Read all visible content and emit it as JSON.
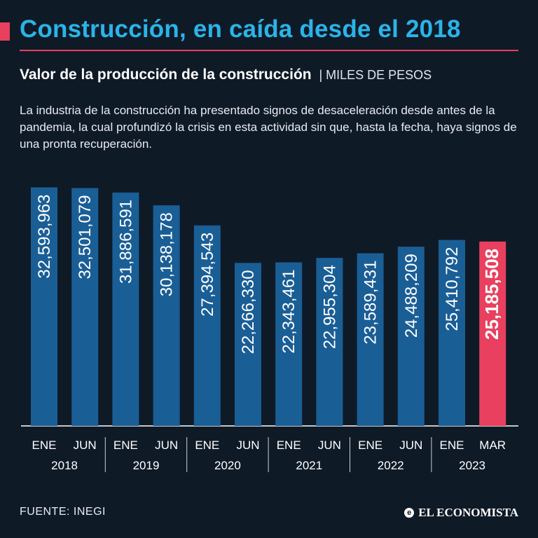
{
  "header": {
    "title": "Construcción, en caída desde el 2018",
    "subtitle": "Valor de la producción de la construcción",
    "unit": "MILES DE PESOS",
    "description": "La industria de la construcción ha presentado signos de desaceleración desde antes de la pandemia, la cual profundizó la crisis en esta actividad sin que, hasta la fecha, haya signos de una pronta recuperación."
  },
  "footer": {
    "source": "FUENTE: INEGI",
    "logo_text": "EL ECONOMISTA"
  },
  "colors": {
    "background": "#0f1a27",
    "bar": "#1a5e96",
    "highlight": "#e8405e",
    "title": "#2ab4e8"
  },
  "chart_data": {
    "type": "bar",
    "title": "Valor de la producción de la construcción",
    "ylabel": "Miles de pesos",
    "xlabel": "",
    "ylim": [
      0,
      33500000
    ],
    "grid": false,
    "categories": [
      "ENE",
      "JUN",
      "ENE",
      "JUN",
      "ENE",
      "JUN",
      "ENE",
      "JUN",
      "ENE",
      "JUN",
      "ENE",
      "MAR"
    ],
    "years": [
      "2018",
      "2019",
      "2020",
      "2021",
      "2022",
      "2023"
    ],
    "values": [
      32593963,
      32501079,
      31886591,
      30138178,
      27394543,
      22266330,
      22343461,
      22955304,
      23589431,
      24488209,
      25410792,
      25185508
    ],
    "labels": [
      "32,593,963",
      "32,501,079",
      "31,886,591",
      "30,138,178",
      "27,394,543",
      "22,266,330",
      "22,343,461",
      "22,955,304",
      "23,589,431",
      "24,488,209",
      "25,410,792",
      "25,185,508"
    ],
    "highlight_index": 11
  }
}
